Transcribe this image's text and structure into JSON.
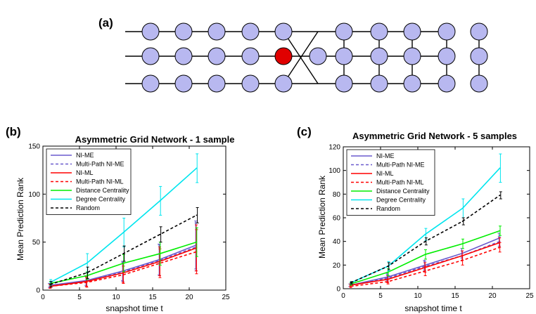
{
  "panel_labels": [
    "(a)",
    "(b)",
    "(c)"
  ],
  "network_diagram": {
    "rows": 3,
    "left_columns": 5,
    "bridge_nodes": 1,
    "right_columns": 5,
    "node_color": "#b8b8f0",
    "highlight_color": "#e00000",
    "highlight_node": "row 2, column 5"
  },
  "legend_entries": [
    {
      "name": "NI-ME",
      "color": "#6a5acd",
      "dash": "solid"
    },
    {
      "name": "Multi-Path NI-ME",
      "color": "#6a5acd",
      "dash": "dashed"
    },
    {
      "name": "NI-ML",
      "color": "#ff0000",
      "dash": "solid"
    },
    {
      "name": "Multi-Path NI-ML",
      "color": "#ff0000",
      "dash": "dashed"
    },
    {
      "name": "Distance Centrality",
      "color": "#00ee00",
      "dash": "solid"
    },
    {
      "name": "Degree Centrality",
      "color": "#00e5ee",
      "dash": "solid"
    },
    {
      "name": "Random",
      "color": "#000000",
      "dash": "dashed"
    }
  ],
  "chart_data": [
    {
      "type": "line",
      "title": "Asymmetric Grid Network - 1 sample",
      "xlabel": "snapshot time t",
      "ylabel": "Mean Prediction Rank",
      "xlim": [
        0,
        25
      ],
      "ylim": [
        0,
        150
      ],
      "xticks": [
        0,
        5,
        10,
        15,
        20,
        25
      ],
      "yticks": [
        0,
        50,
        100,
        150
      ],
      "grid": false,
      "legend_position": "top-left",
      "x": [
        1,
        6,
        11,
        16,
        21
      ],
      "series": [
        {
          "name": "NI-ME",
          "values": [
            5,
            10,
            20,
            32,
            47
          ],
          "errors": [
            2,
            5,
            10,
            16,
            25
          ]
        },
        {
          "name": "Multi-Path NI-ME",
          "values": [
            5,
            9,
            19,
            31,
            45
          ],
          "errors": [
            2,
            5,
            10,
            16,
            25
          ]
        },
        {
          "name": "NI-ML",
          "values": [
            4,
            9,
            18,
            30,
            44
          ],
          "errors": [
            2,
            5,
            10,
            15,
            24
          ]
        },
        {
          "name": "Multi-Path NI-ML",
          "values": [
            4,
            8,
            16,
            28,
            40
          ],
          "errors": [
            2,
            5,
            9,
            15,
            23
          ]
        },
        {
          "name": "Distance Centrality",
          "values": [
            7,
            15,
            28,
            38,
            50
          ],
          "errors": [
            2,
            4,
            9,
            12,
            15
          ]
        },
        {
          "name": "Degree Centrality",
          "values": [
            8,
            28,
            60,
            93,
            127
          ],
          "errors": [
            3,
            10,
            15,
            15,
            15
          ]
        },
        {
          "name": "Random",
          "values": [
            6,
            18,
            38,
            58,
            78
          ],
          "errors": [
            3,
            6,
            8,
            8,
            8
          ]
        }
      ]
    },
    {
      "type": "line",
      "title": "Asymmetric Grid Network - 5 samples",
      "xlabel": "snapshot time t",
      "ylabel": "Mean Prediction Rank",
      "xlim": [
        0,
        25
      ],
      "ylim": [
        0,
        120
      ],
      "xticks": [
        0,
        5,
        10,
        15,
        20,
        25
      ],
      "yticks": [
        0,
        20,
        40,
        60,
        80,
        100,
        120
      ],
      "grid": false,
      "legend_position": "top-left",
      "x": [
        1,
        6,
        11,
        16,
        21
      ],
      "series": [
        {
          "name": "NI-ME",
          "values": [
            3,
            10,
            20,
            30,
            43
          ],
          "errors": [
            1,
            3,
            4,
            4,
            4
          ]
        },
        {
          "name": "Multi-Path NI-ME",
          "values": [
            3,
            9,
            19,
            28,
            40
          ],
          "errors": [
            1,
            3,
            4,
            4,
            4
          ]
        },
        {
          "name": "NI-ML",
          "values": [
            3,
            8,
            18,
            28,
            39
          ],
          "errors": [
            1,
            3,
            4,
            4,
            4
          ]
        },
        {
          "name": "Multi-Path NI-ML",
          "values": [
            2,
            6,
            15,
            24,
            35
          ],
          "errors": [
            1,
            2,
            4,
            4,
            4
          ]
        },
        {
          "name": "Distance Centrality",
          "values": [
            4,
            14,
            29,
            38,
            49
          ],
          "errors": [
            1,
            3,
            4,
            4,
            4
          ]
        },
        {
          "name": "Degree Centrality",
          "values": [
            5,
            19,
            46,
            68,
            102
          ],
          "errors": [
            1,
            4,
            5,
            8,
            12
          ]
        },
        {
          "name": "Random",
          "values": [
            5,
            19,
            40,
            57,
            79
          ],
          "errors": [
            1,
            3,
            3,
            3,
            3
          ]
        }
      ]
    }
  ]
}
